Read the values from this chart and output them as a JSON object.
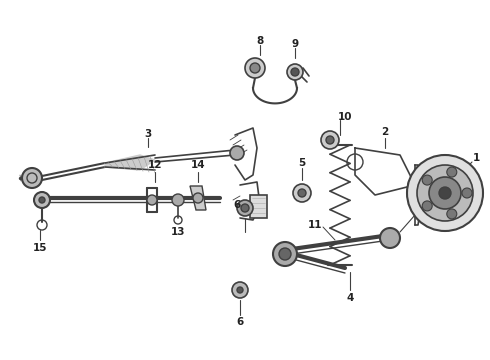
{
  "background_color": "#ffffff",
  "line_color": "#404040",
  "text_color": "#222222",
  "fig_width": 4.9,
  "fig_height": 3.6,
  "dpi": 100
}
